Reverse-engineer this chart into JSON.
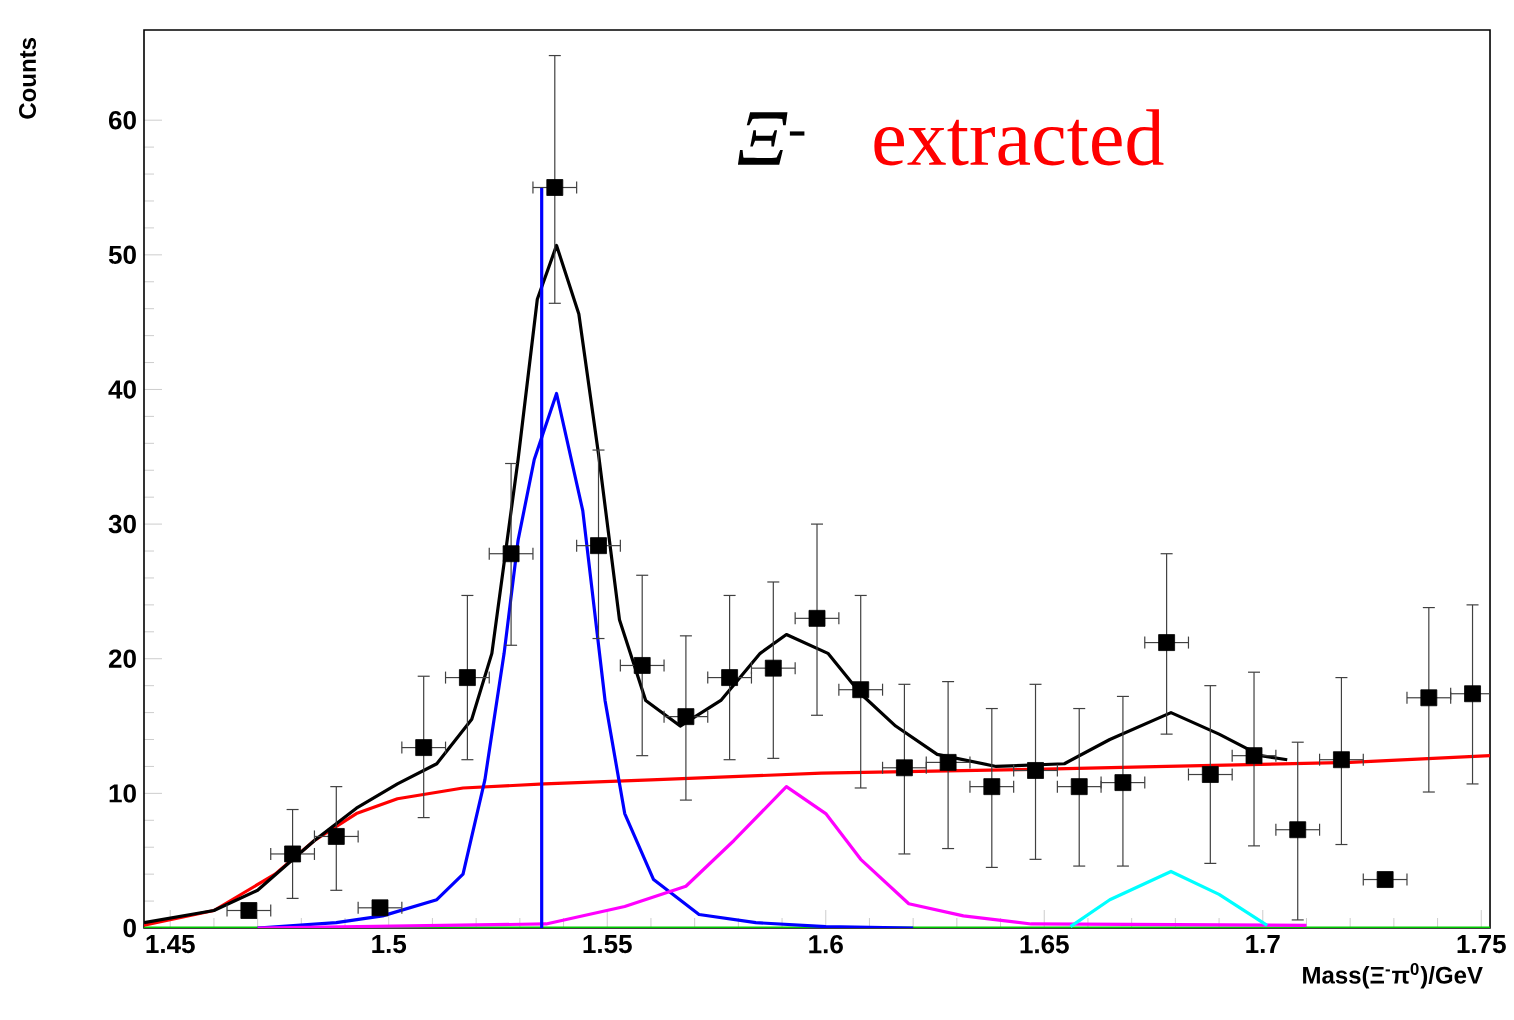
{
  "chart_data": {
    "type": "line",
    "xlabel": "Mass(Ξ$^{-}$π$^{0}$)/GeV",
    "ylabel": "Counts",
    "annotations": [
      "*Ξ*$^{-}$",
      "extracted"
    ],
    "xlim": [
      1.444,
      1.752
    ],
    "ylim": [
      0,
      66.7
    ],
    "xticks": [
      1.45,
      1.5,
      1.55,
      1.6,
      1.65,
      1.7,
      1.75
    ],
    "yticks": [
      0,
      10,
      20,
      30,
      40,
      50,
      60
    ],
    "series": [
      {
        "type": "line",
        "color": "#00cc00",
        "x": [
          1.444,
          1.752
        ],
        "values": [
          0,
          0
        ]
      },
      {
        "type": "line",
        "color": "#ff0000",
        "x": [
          1.444,
          1.46,
          1.474,
          1.483,
          1.4926,
          1.502,
          1.517,
          1.5356,
          1.56,
          1.599,
          1.65,
          1.678,
          1.72,
          1.752
        ],
        "values": [
          0.2,
          1.3,
          4.0,
          6.5,
          8.5,
          9.6,
          10.4,
          10.7,
          11.0,
          11.5,
          11.8,
          12.0,
          12.3,
          12.8
        ]
      },
      {
        "type": "line",
        "color": "#0000ff",
        "x": [
          1.47,
          1.488,
          1.4986,
          1.511,
          1.517,
          1.522,
          1.5264,
          1.5296,
          1.5333,
          1.5384,
          1.5444,
          1.5495,
          1.554,
          1.5606,
          1.571,
          1.584,
          1.6,
          1.62
        ],
        "values": [
          0,
          0.4,
          0.9,
          2.1,
          4.0,
          11,
          20.4,
          28.8,
          34.8,
          39.7,
          31,
          16.9,
          8.5,
          3.6,
          1.0,
          0.4,
          0.1,
          0
        ]
      },
      {
        "type": "line",
        "color": "#ff00ff",
        "x": [
          1.47,
          1.536,
          1.554,
          1.568,
          1.579,
          1.591,
          1.6,
          1.608,
          1.619,
          1.6315,
          1.647,
          1.71
        ],
        "values": [
          0,
          0.3,
          1.6,
          3.1,
          6.5,
          10.5,
          8.5,
          5.1,
          1.8,
          0.9,
          0.3,
          0.2
        ]
      },
      {
        "type": "line",
        "color": "#00ffff",
        "x": [
          1.656,
          1.665,
          1.679,
          1.69,
          1.701
        ],
        "values": [
          0.1,
          2.1,
          4.2,
          2.5,
          0.2
        ]
      },
      {
        "type": "line",
        "color": "#000000",
        "x": [
          1.444,
          1.46,
          1.47,
          1.483,
          1.4926,
          1.502,
          1.511,
          1.519,
          1.5236,
          1.5296,
          1.534,
          1.5384,
          1.5435,
          1.548,
          1.5528,
          1.5588,
          1.5667,
          1.576,
          1.585,
          1.591,
          1.6005,
          1.608,
          1.616,
          1.6255,
          1.639,
          1.6546,
          1.665,
          1.679,
          1.69,
          1.6995,
          1.7056
        ],
        "values": [
          0.4,
          1.3,
          2.8,
          6.5,
          8.9,
          10.7,
          12.2,
          15.5,
          20.4,
          34.8,
          46.7,
          50.7,
          45.6,
          35.2,
          22.9,
          16.9,
          15.0,
          16.9,
          20.4,
          21.8,
          20.4,
          17.4,
          15.0,
          12.9,
          12.0,
          12.2,
          14.0,
          16.0,
          14.4,
          12.8,
          12.5
        ]
      },
      {
        "type": "line",
        "color": "#0000ff",
        "x": [
          1.535,
          1.535
        ],
        "values": [
          0,
          55
        ]
      },
      {
        "type": "scatter",
        "color": "#000000",
        "marker": "square",
        "x": [
          1.468,
          1.478,
          1.488,
          1.498,
          1.508,
          1.518,
          1.528,
          1.538,
          1.548,
          1.558,
          1.568,
          1.578,
          1.588,
          1.598,
          1.608,
          1.618,
          1.628,
          1.638,
          1.648,
          1.658,
          1.668,
          1.678,
          1.688,
          1.698,
          1.708,
          1.718,
          1.728,
          1.738,
          1.748
        ],
        "values": [
          1.3,
          5.5,
          6.8,
          1.5,
          13.4,
          18.6,
          27.8,
          55,
          28.4,
          19.5,
          15.7,
          18.6,
          19.3,
          23,
          17.7,
          11.9,
          12.3,
          10.5,
          11.7,
          10.5,
          10.8,
          21.2,
          11.4,
          12.8,
          7.3,
          12.5,
          3.6,
          17.1,
          17.4
        ],
        "errors": [
          null,
          [
            2.2,
            8.8
          ],
          [
            2.8,
            10.5
          ],
          null,
          [
            8.2,
            18.7
          ],
          [
            12.5,
            24.7
          ],
          [
            21,
            34.5
          ],
          [
            46.4,
            64.8
          ],
          [
            21.5,
            35.5
          ],
          [
            12.8,
            26.2
          ],
          [
            9.5,
            21.7
          ],
          [
            12.5,
            24.7
          ],
          [
            12.6,
            25.7
          ],
          [
            15.8,
            30
          ],
          [
            10.4,
            24.7
          ],
          [
            5.5,
            18.1
          ],
          [
            5.9,
            18.3
          ],
          [
            4.5,
            16.3
          ],
          [
            5.1,
            18.1
          ],
          [
            4.6,
            16.3
          ],
          [
            4.6,
            17.2
          ],
          [
            14.4,
            27.8
          ],
          [
            4.8,
            18
          ],
          [
            6.1,
            19
          ],
          [
            0.6,
            13.8
          ],
          [
            6.2,
            18.6
          ],
          null,
          [
            10.1,
            23.8
          ],
          [
            10.7,
            24
          ]
        ],
        "xerrors": [
          0.005,
          0.005,
          0.005,
          0.005,
          0.005,
          0.005,
          0.005,
          0.005,
          0.005,
          0.005,
          0.005,
          0.005,
          0.005,
          0.005,
          0.005,
          0.005,
          0.005,
          0.005,
          0.005,
          0.005,
          0.005,
          0.005,
          0.005,
          0.005,
          0.005,
          0.005,
          0.005,
          0.005,
          0.005
        ]
      }
    ]
  }
}
